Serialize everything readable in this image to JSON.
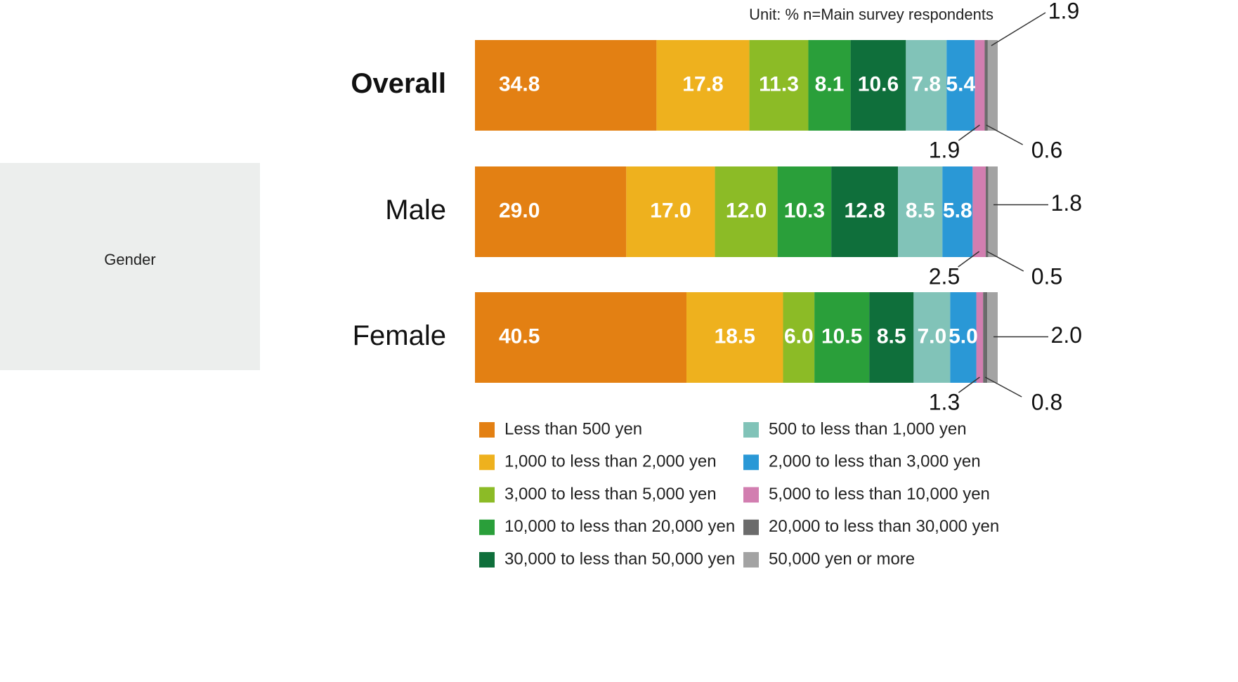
{
  "chart_data": {
    "type": "bar",
    "orientation": "horizontal",
    "stacked": true,
    "unit_note": "Unit: %  n=Main survey respondents",
    "group_label": "Gender",
    "categories": [
      "Overall",
      "Male",
      "Female"
    ],
    "series": [
      {
        "name": "Less than 500 yen",
        "color": "#e38013",
        "values": [
          34.8,
          29.0,
          40.5
        ]
      },
      {
        "name": "1,000 to less than 2,000 yen",
        "color": "#eeb11e",
        "values": [
          17.8,
          17.0,
          18.5
        ]
      },
      {
        "name": "3,000 to less than 5,000 yen",
        "color": "#8cbb26",
        "values": [
          11.3,
          12.0,
          6.0
        ]
      },
      {
        "name": "10,000 to less than 20,000 yen",
        "color": "#2a9f3a",
        "values": [
          8.1,
          10.3,
          10.5
        ]
      },
      {
        "name": "30,000 to less than 50,000 yen",
        "color": "#0f6f3b",
        "values": [
          10.6,
          12.8,
          8.5
        ]
      },
      {
        "name": "500 to less than 1,000 yen",
        "color": "#81c3b8",
        "values": [
          7.8,
          8.5,
          7.0
        ]
      },
      {
        "name": "2,000 to less than 3,000 yen",
        "color": "#2a98d6",
        "values": [
          5.4,
          5.8,
          5.0
        ]
      },
      {
        "name": "5,000 to less than 10,000 yen",
        "color": "#d27eb0",
        "values": [
          1.9,
          2.5,
          1.3
        ]
      },
      {
        "name": "20,000 to less than 30,000 yen",
        "color": "#6b6b6b",
        "values": [
          0.6,
          0.5,
          0.8
        ]
      },
      {
        "name": "50,000 yen or more",
        "color": "#a3a3a3",
        "values": [
          1.9,
          1.8,
          2.0
        ]
      }
    ],
    "display_labels": [
      [
        "34.8",
        "17.8",
        "11.3",
        "8.1",
        "10.6",
        "7.8",
        "5.4",
        "1.9",
        "0.6",
        "1.9"
      ],
      [
        "29.0",
        "17.0",
        "12.0",
        "10.3",
        "12.8",
        "8.5",
        "5.8",
        "2.5",
        "0.5",
        "1.8"
      ],
      [
        "40.5",
        "18.5",
        "6.0",
        "10.5",
        "8.5",
        "7.0",
        "5.0",
        "1.3",
        "0.8",
        "2.0"
      ]
    ],
    "legend_columns": [
      [
        "Less than 500 yen",
        "1,000 to less than 2,000 yen",
        "3,000 to less than 5,000 yen",
        "10,000 to less than 20,000 yen",
        "30,000 to less than 50,000 yen"
      ],
      [
        "500 to less than 1,000 yen",
        "2,000 to less than 3,000 yen",
        "5,000 to less than 10,000 yen",
        "20,000 to less than 30,000 yen",
        "50,000 yen or more"
      ]
    ],
    "xlim": [
      0,
      100
    ],
    "grid": false,
    "legend_position": "bottom"
  }
}
